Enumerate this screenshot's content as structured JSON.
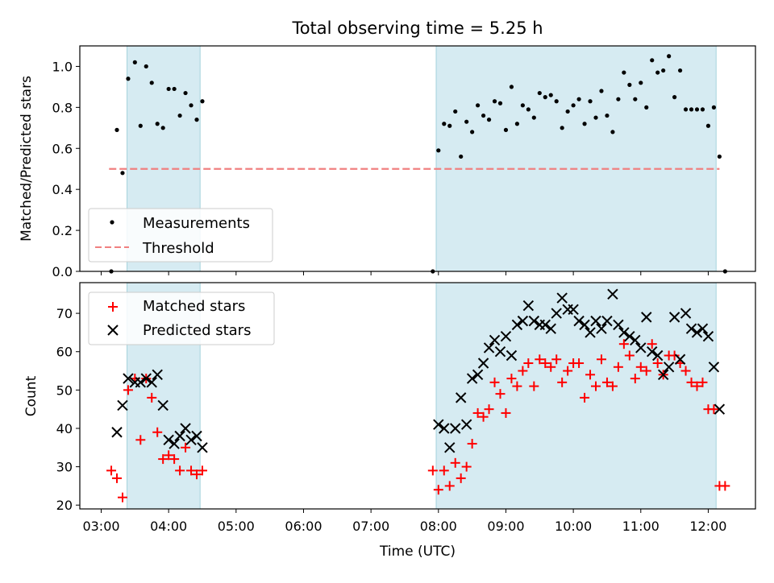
{
  "title": "Total observing time = 5.25 h",
  "chart_data": [
    {
      "type": "scatter",
      "panel": "top",
      "ylabel": "Matched/Predicted stars",
      "xlabel": "",
      "ylim": [
        0,
        1.1
      ],
      "xlim": [
        "02:41",
        "12:42"
      ],
      "yticks": [
        "0.0",
        "0.2",
        "0.4",
        "0.6",
        "0.8",
        "1.0"
      ],
      "shaded_ranges": [
        [
          "03:23",
          "04:28"
        ],
        [
          "07:58",
          "12:07"
        ]
      ],
      "threshold": {
        "name": "Threshold",
        "value": 0.5,
        "x_start": "03:07",
        "x_end": "12:10",
        "color": "#f08080"
      },
      "legend": {
        "position": "lower left",
        "entries": [
          "Measurements",
          "Threshold"
        ]
      },
      "series": [
        {
          "name": "Measurements",
          "color": "#000000",
          "points": [
            [
              "03:09",
              0.0
            ],
            [
              "03:14",
              0.69
            ],
            [
              "03:19",
              0.48
            ],
            [
              "03:24",
              0.94
            ],
            [
              "03:30",
              1.02
            ],
            [
              "03:35",
              0.71
            ],
            [
              "03:40",
              1.0
            ],
            [
              "03:45",
              0.92
            ],
            [
              "03:50",
              0.72
            ],
            [
              "03:55",
              0.7
            ],
            [
              "04:00",
              0.89
            ],
            [
              "04:05",
              0.89
            ],
            [
              "04:10",
              0.76
            ],
            [
              "04:15",
              0.87
            ],
            [
              "04:20",
              0.81
            ],
            [
              "04:25",
              0.74
            ],
            [
              "04:30",
              0.83
            ],
            [
              "07:55",
              0.0
            ],
            [
              "08:00",
              0.59
            ],
            [
              "08:05",
              0.72
            ],
            [
              "08:10",
              0.71
            ],
            [
              "08:15",
              0.78
            ],
            [
              "08:20",
              0.56
            ],
            [
              "08:25",
              0.73
            ],
            [
              "08:30",
              0.68
            ],
            [
              "08:35",
              0.81
            ],
            [
              "08:40",
              0.76
            ],
            [
              "08:45",
              0.74
            ],
            [
              "08:50",
              0.83
            ],
            [
              "08:55",
              0.82
            ],
            [
              "09:00",
              0.69
            ],
            [
              "09:05",
              0.9
            ],
            [
              "09:10",
              0.72
            ],
            [
              "09:15",
              0.81
            ],
            [
              "09:20",
              0.79
            ],
            [
              "09:25",
              0.75
            ],
            [
              "09:30",
              0.87
            ],
            [
              "09:35",
              0.85
            ],
            [
              "09:40",
              0.86
            ],
            [
              "09:45",
              0.83
            ],
            [
              "09:50",
              0.7
            ],
            [
              "09:55",
              0.78
            ],
            [
              "10:00",
              0.81
            ],
            [
              "10:05",
              0.84
            ],
            [
              "10:10",
              0.72
            ],
            [
              "10:15",
              0.83
            ],
            [
              "10:20",
              0.75
            ],
            [
              "10:25",
              0.88
            ],
            [
              "10:30",
              0.76
            ],
            [
              "10:35",
              0.68
            ],
            [
              "10:40",
              0.84
            ],
            [
              "10:45",
              0.97
            ],
            [
              "10:50",
              0.91
            ],
            [
              "10:55",
              0.84
            ],
            [
              "11:00",
              0.92
            ],
            [
              "11:05",
              0.8
            ],
            [
              "11:10",
              1.03
            ],
            [
              "11:15",
              0.97
            ],
            [
              "11:20",
              0.98
            ],
            [
              "11:25",
              1.05
            ],
            [
              "11:30",
              0.85
            ],
            [
              "11:35",
              0.98
            ],
            [
              "11:40",
              0.79
            ],
            [
              "11:45",
              0.79
            ],
            [
              "11:50",
              0.79
            ],
            [
              "11:55",
              0.79
            ],
            [
              "12:00",
              0.71
            ],
            [
              "12:05",
              0.8
            ],
            [
              "12:10",
              0.56
            ],
            [
              "12:15",
              0.0
            ]
          ]
        }
      ]
    },
    {
      "type": "scatter",
      "panel": "bottom",
      "ylabel": "Count",
      "xlabel": "Time (UTC)",
      "ylim": [
        19,
        78
      ],
      "xlim": [
        "02:41",
        "12:42"
      ],
      "xticks": [
        "03:00",
        "04:00",
        "05:00",
        "06:00",
        "07:00",
        "08:00",
        "09:00",
        "10:00",
        "11:00",
        "12:00"
      ],
      "yticks": [
        "20",
        "30",
        "40",
        "50",
        "60",
        "70"
      ],
      "shaded_ranges": [
        [
          "03:23",
          "04:28"
        ],
        [
          "07:58",
          "12:07"
        ]
      ],
      "legend": {
        "position": "upper left",
        "entries": [
          "Matched stars",
          "Predicted stars"
        ]
      },
      "series": [
        {
          "name": "Matched stars",
          "marker": "+",
          "color": "#ff0000",
          "points": [
            [
              "03:09",
              29
            ],
            [
              "03:14",
              27
            ],
            [
              "03:19",
              22
            ],
            [
              "03:24",
              50
            ],
            [
              "03:30",
              53
            ],
            [
              "03:35",
              37
            ],
            [
              "03:40",
              53
            ],
            [
              "03:45",
              48
            ],
            [
              "03:50",
              39
            ],
            [
              "03:55",
              32
            ],
            [
              "04:00",
              33
            ],
            [
              "04:05",
              32
            ],
            [
              "04:10",
              29
            ],
            [
              "04:15",
              35
            ],
            [
              "04:20",
              29
            ],
            [
              "04:25",
              28
            ],
            [
              "04:30",
              29
            ],
            [
              "07:55",
              29
            ],
            [
              "08:00",
              24
            ],
            [
              "08:05",
              29
            ],
            [
              "08:10",
              25
            ],
            [
              "08:15",
              31
            ],
            [
              "08:20",
              27
            ],
            [
              "08:25",
              30
            ],
            [
              "08:30",
              36
            ],
            [
              "08:35",
              44
            ],
            [
              "08:40",
              43
            ],
            [
              "08:45",
              45
            ],
            [
              "08:50",
              52
            ],
            [
              "08:55",
              49
            ],
            [
              "09:00",
              44
            ],
            [
              "09:05",
              53
            ],
            [
              "09:10",
              51
            ],
            [
              "09:15",
              55
            ],
            [
              "09:20",
              57
            ],
            [
              "09:25",
              51
            ],
            [
              "09:30",
              58
            ],
            [
              "09:35",
              57
            ],
            [
              "09:40",
              56
            ],
            [
              "09:45",
              58
            ],
            [
              "09:50",
              52
            ],
            [
              "09:55",
              55
            ],
            [
              "10:00",
              57
            ],
            [
              "10:05",
              57
            ],
            [
              "10:10",
              48
            ],
            [
              "10:15",
              54
            ],
            [
              "10:20",
              51
            ],
            [
              "10:25",
              58
            ],
            [
              "10:30",
              52
            ],
            [
              "10:35",
              51
            ],
            [
              "10:40",
              56
            ],
            [
              "10:45",
              62
            ],
            [
              "10:50",
              59
            ],
            [
              "10:55",
              53
            ],
            [
              "11:00",
              56
            ],
            [
              "11:05",
              55
            ],
            [
              "11:10",
              62
            ],
            [
              "11:15",
              57
            ],
            [
              "11:20",
              54
            ],
            [
              "11:25",
              59
            ],
            [
              "11:30",
              59
            ],
            [
              "11:35",
              57
            ],
            [
              "11:40",
              55
            ],
            [
              "11:45",
              52
            ],
            [
              "11:50",
              51
            ],
            [
              "11:55",
              52
            ],
            [
              "12:00",
              45
            ],
            [
              "12:05",
              45
            ],
            [
              "12:10",
              25
            ],
            [
              "12:15",
              25
            ]
          ]
        },
        {
          "name": "Predicted stars",
          "marker": "x",
          "color": "#000000",
          "points": [
            [
              "03:14",
              39
            ],
            [
              "03:19",
              46
            ],
            [
              "03:24",
              53
            ],
            [
              "03:30",
              52
            ],
            [
              "03:35",
              52
            ],
            [
              "03:40",
              53
            ],
            [
              "03:45",
              52
            ],
            [
              "03:50",
              54
            ],
            [
              "03:55",
              46
            ],
            [
              "04:00",
              37
            ],
            [
              "04:05",
              36
            ],
            [
              "04:10",
              38
            ],
            [
              "04:15",
              40
            ],
            [
              "04:20",
              37
            ],
            [
              "04:25",
              38
            ],
            [
              "04:30",
              35
            ],
            [
              "08:00",
              41
            ],
            [
              "08:05",
              40
            ],
            [
              "08:10",
              35
            ],
            [
              "08:15",
              40
            ],
            [
              "08:20",
              48
            ],
            [
              "08:25",
              41
            ],
            [
              "08:30",
              53
            ],
            [
              "08:35",
              54
            ],
            [
              "08:40",
              57
            ],
            [
              "08:45",
              61
            ],
            [
              "08:50",
              63
            ],
            [
              "08:55",
              60
            ],
            [
              "09:00",
              64
            ],
            [
              "09:05",
              59
            ],
            [
              "09:10",
              67
            ],
            [
              "09:15",
              68
            ],
            [
              "09:20",
              72
            ],
            [
              "09:25",
              68
            ],
            [
              "09:30",
              67
            ],
            [
              "09:35",
              67
            ],
            [
              "09:40",
              66
            ],
            [
              "09:45",
              70
            ],
            [
              "09:50",
              74
            ],
            [
              "09:55",
              71
            ],
            [
              "10:00",
              71
            ],
            [
              "10:05",
              68
            ],
            [
              "10:10",
              67
            ],
            [
              "10:15",
              65
            ],
            [
              "10:20",
              68
            ],
            [
              "10:25",
              66
            ],
            [
              "10:30",
              68
            ],
            [
              "10:35",
              75
            ],
            [
              "10:40",
              67
            ],
            [
              "10:45",
              65
            ],
            [
              "10:50",
              64
            ],
            [
              "10:55",
              63
            ],
            [
              "11:00",
              61
            ],
            [
              "11:05",
              69
            ],
            [
              "11:10",
              60
            ],
            [
              "11:15",
              59
            ],
            [
              "11:20",
              54
            ],
            [
              "11:25",
              56
            ],
            [
              "11:30",
              69
            ],
            [
              "11:35",
              58
            ],
            [
              "11:40",
              70
            ],
            [
              "11:45",
              66
            ],
            [
              "11:50",
              65
            ],
            [
              "11:55",
              66
            ],
            [
              "12:00",
              64
            ],
            [
              "12:05",
              56
            ],
            [
              "12:10",
              45
            ]
          ]
        }
      ]
    }
  ]
}
